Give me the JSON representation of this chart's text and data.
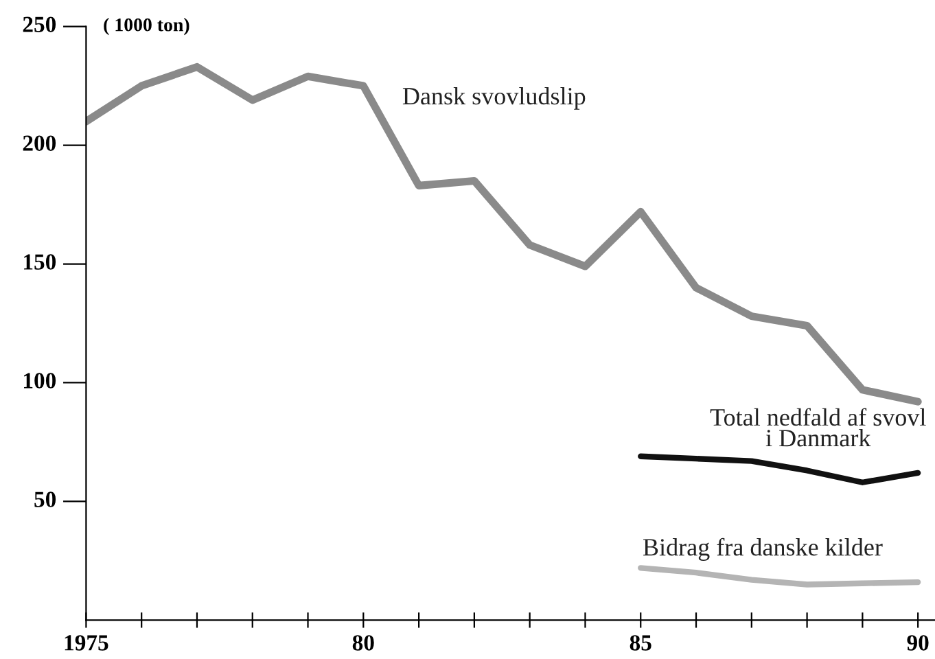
{
  "chart_data": {
    "type": "line",
    "ylabel": "( 1000 ton)",
    "x": [
      1975,
      1976,
      1977,
      1978,
      1979,
      1980,
      1981,
      1982,
      1983,
      1984,
      1985,
      1986,
      1987,
      1988,
      1989,
      1990
    ],
    "series": [
      {
        "name": "Dansk svovludslip",
        "color": "#8a8a8a",
        "values": [
          210,
          225,
          233,
          219,
          229,
          225,
          183,
          185,
          158,
          149,
          172,
          140,
          128,
          124,
          97,
          92
        ]
      },
      {
        "name": "Total nedfald af svovl\ni Danmark",
        "color": "#111111",
        "x": [
          1985,
          1986,
          1987,
          1988,
          1989,
          1990
        ],
        "values": [
          69,
          68,
          67,
          63,
          58,
          62
        ]
      },
      {
        "name": "Bidrag fra danske kilder",
        "color": "#b4b4b4",
        "x": [
          1985,
          1986,
          1987,
          1988,
          1989,
          1990
        ],
        "values": [
          22,
          20,
          17,
          15,
          15.5,
          16
        ]
      }
    ],
    "xlim": [
      1975,
      1990.3
    ],
    "ylim": [
      0,
      250
    ],
    "xticks": [
      {
        "value": 1975,
        "label": "1975"
      },
      {
        "value": 1976,
        "label": null
      },
      {
        "value": 1977,
        "label": null
      },
      {
        "value": 1978,
        "label": null
      },
      {
        "value": 1979,
        "label": null
      },
      {
        "value": 1980,
        "label": "80"
      },
      {
        "value": 1981,
        "label": null
      },
      {
        "value": 1982,
        "label": null
      },
      {
        "value": 1983,
        "label": null
      },
      {
        "value": 1984,
        "label": null
      },
      {
        "value": 1985,
        "label": "85"
      },
      {
        "value": 1986,
        "label": null
      },
      {
        "value": 1987,
        "label": null
      },
      {
        "value": 1988,
        "label": null
      },
      {
        "value": 1989,
        "label": null
      },
      {
        "value": 1990,
        "label": "90"
      }
    ],
    "yticks": [
      50,
      100,
      150,
      200,
      250
    ],
    "grid": false,
    "legend": false,
    "marker": "none",
    "line_style": "solid"
  }
}
